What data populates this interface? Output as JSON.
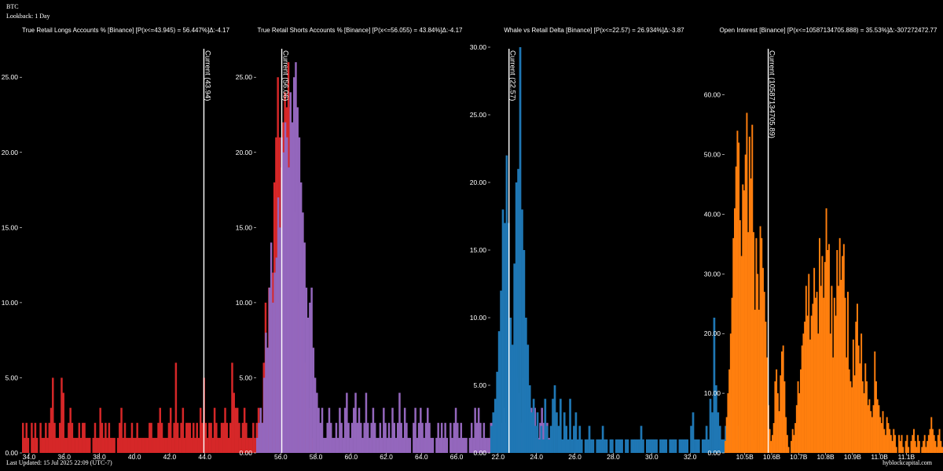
{
  "header": {
    "symbol": "BTC",
    "lookback": "Lookback: 1 Day"
  },
  "footer": {
    "updated": "Last Updated: 15 Jul 2025 22:09 (UTC-7)",
    "brand": "hyblockcapital.com"
  },
  "chart_data": [
    {
      "type": "bar",
      "title": "True Retail Longs Accounts % [Binance] [P(x<=43.945) = 56.447%]Δ:-4.17",
      "color": "#d62728",
      "xlim": [
        33.6,
        45.4
      ],
      "ylim": [
        0,
        27
      ],
      "xticks": [
        34.0,
        36.0,
        38.0,
        40.0,
        42.0,
        44.0
      ],
      "xtick_labels": [
        "34.0",
        "36.0",
        "38.0",
        "40.0",
        "42.0",
        "44.0"
      ],
      "yticks": [
        0,
        5,
        10,
        15,
        20,
        25
      ],
      "ytick_labels": [
        "0.00",
        "5.00",
        "10.00",
        "15.00",
        "20.00",
        "25.00"
      ],
      "bin_start": 33.6,
      "bin_width": 0.1,
      "values": [
        2,
        1,
        2,
        1,
        0,
        2,
        1,
        2,
        1,
        0,
        2,
        1,
        1,
        2,
        1,
        2,
        3,
        5,
        2,
        1,
        1,
        2,
        5,
        4,
        1,
        1,
        2,
        3,
        2,
        1,
        1,
        1,
        2,
        1,
        2,
        2,
        1,
        1,
        1,
        0,
        1,
        2,
        1,
        1,
        3,
        2,
        1,
        2,
        1,
        2,
        1,
        1,
        1,
        0,
        1,
        2,
        3,
        1,
        2,
        1,
        1,
        1,
        2,
        1,
        1,
        2,
        1,
        1,
        1,
        1,
        1,
        1,
        2,
        2,
        1,
        1,
        1,
        2,
        3,
        2,
        1,
        1,
        1,
        2,
        3,
        1,
        2,
        6,
        2,
        1,
        2,
        3,
        1,
        2,
        2,
        2,
        1,
        2,
        1,
        2,
        1,
        3,
        2,
        5,
        2,
        1,
        2,
        2,
        1,
        3,
        2,
        1,
        1,
        2,
        2,
        3,
        2,
        1,
        2,
        6,
        4,
        3,
        3,
        2,
        1,
        2,
        3,
        2,
        1,
        1,
        1,
        2,
        1,
        2,
        3,
        1,
        2,
        6,
        10,
        7,
        11,
        10,
        12,
        18,
        21,
        25,
        21,
        19,
        22,
        24,
        23,
        26,
        23,
        21,
        18,
        16,
        14,
        10,
        8,
        12,
        9,
        6,
        5,
        3,
        2,
        1,
        1,
        0
      ],
      "current": {
        "value": 43.945,
        "label": "Current (43.94)"
      }
    },
    {
      "type": "bar",
      "title": "True Retail Shorts Accounts % [Binance] [P(x<=56.055) = 43.84%]Δ:-4.17",
      "color": "#9467bd",
      "xlim": [
        54.6,
        66.4
      ],
      "ylim": [
        0,
        27
      ],
      "xticks": [
        56.0,
        58.0,
        60.0,
        62.0,
        64.0,
        66.0
      ],
      "xtick_labels": [
        "56.0",
        "58.0",
        "60.0",
        "62.0",
        "64.0",
        "66.0"
      ],
      "yticks": [
        0,
        5,
        10,
        15,
        20,
        25
      ],
      "ytick_labels": [
        "0.00",
        "5.00",
        "10.00",
        "15.00",
        "20.00",
        "25.00"
      ],
      "bin_start": 54.6,
      "bin_width": 0.1,
      "values": [
        1,
        2,
        3,
        2,
        5,
        8,
        7,
        11,
        14,
        10,
        12,
        13,
        17,
        15,
        21,
        20,
        22,
        21,
        19,
        24,
        22,
        25,
        26,
        23,
        21,
        18,
        16,
        14,
        11,
        9,
        10,
        11,
        7,
        5,
        4,
        3,
        2,
        3,
        1,
        1,
        2,
        3,
        2,
        1,
        1,
        2,
        1,
        3,
        2,
        1,
        3,
        4,
        2,
        1,
        2,
        3,
        4,
        2,
        3,
        2,
        1,
        2,
        4,
        2,
        1,
        2,
        3,
        2,
        1,
        1,
        2,
        1,
        3,
        2,
        1,
        2,
        1,
        3,
        2,
        1,
        2,
        4,
        2,
        1,
        3,
        2,
        1,
        1,
        0,
        2,
        3,
        1,
        2,
        3,
        2,
        1,
        2,
        3,
        2,
        1,
        1,
        0,
        1,
        2,
        1,
        2,
        1,
        2,
        1,
        0,
        2,
        1,
        2,
        3,
        2,
        1,
        2,
        1,
        1,
        1,
        0,
        1,
        2,
        1,
        3,
        2,
        3,
        2,
        1,
        2,
        1,
        1,
        1,
        2,
        2,
        2,
        3,
        2,
        1,
        2,
        3,
        1,
        2,
        2,
        1,
        2,
        1,
        3,
        5,
        4,
        2,
        5,
        4,
        3,
        5,
        2,
        3,
        2,
        3,
        1,
        1,
        2,
        3,
        2,
        1,
        2,
        1,
        1,
        0
      ],
      "current": {
        "value": 56.055,
        "label": "Current (56.06)"
      }
    },
    {
      "type": "bar",
      "title": "Whale vs Retail Delta [Binance] [P(x<=22.57) = 26.934%]Δ:-3.87",
      "color": "#1f77b4",
      "xlim": [
        21.6,
        32.4
      ],
      "ylim": [
        0,
        30
      ],
      "xticks": [
        22.0,
        24.0,
        26.0,
        28.0,
        30.0,
        32.0
      ],
      "xtick_labels": [
        "22.0",
        "24.0",
        "26.0",
        "28.0",
        "30.0",
        "32.0"
      ],
      "yticks": [
        0,
        5,
        10,
        15,
        20,
        25,
        30
      ],
      "ytick_labels": [
        "0.00",
        "5.00",
        "10.00",
        "15.00",
        "20.00",
        "25.00",
        "30.00"
      ],
      "bin_start": 21.6,
      "bin_width": 0.1,
      "values": [
        2,
        3,
        4,
        6,
        9,
        12,
        18,
        17,
        22,
        17,
        10,
        8,
        14,
        20,
        21,
        30,
        18,
        15,
        10,
        8,
        5,
        3,
        4,
        2,
        3,
        1,
        2,
        1,
        4,
        2,
        1,
        2,
        4,
        5,
        3,
        2,
        4,
        1,
        3,
        2,
        1,
        4,
        1,
        2,
        3,
        1,
        2,
        1,
        0,
        1,
        1,
        2,
        1,
        1,
        0,
        1,
        1,
        1,
        2,
        1,
        1,
        0,
        1,
        1,
        0,
        1,
        1,
        1,
        1,
        0,
        1,
        1,
        0,
        1,
        1,
        1,
        1,
        1,
        2,
        1,
        0,
        1,
        1,
        1,
        1,
        1,
        1,
        0,
        1,
        1,
        1,
        1,
        0,
        1,
        1,
        1,
        1,
        0,
        1,
        1,
        1,
        1,
        1,
        0,
        2,
        3,
        1,
        1,
        1,
        0,
        1,
        1,
        2,
        1,
        4,
        3,
        10,
        5,
        3,
        2,
        1,
        1,
        2,
        1,
        3,
        4,
        2,
        1,
        2,
        0,
        0,
        0,
        0,
        0,
        3,
        2,
        1,
        1
      ],
      "current": {
        "value": 22.57,
        "label": "Current (22.57)"
      }
    },
    {
      "type": "bar",
      "title": "Open Interest [Binance] [P(x<=10587134705.888) = 35.53%]Δ:-307272472.77",
      "color": "#ff7f0e",
      "xlim": [
        10.425,
        11.195
      ],
      "ylim": [
        0,
        68
      ],
      "xticks": [
        10.5,
        10.6,
        10.7,
        10.8,
        10.9,
        11.0,
        11.1
      ],
      "xtick_labels": [
        "10.5B",
        "10.6B",
        "10.7B",
        "10.8B",
        "10.9B",
        "11.0B",
        "11.1B"
      ],
      "yticks": [
        0,
        10,
        20,
        30,
        40,
        50,
        60
      ],
      "ytick_labels": [
        "0.00",
        "10.00",
        "20.00",
        "30.00",
        "40.00",
        "50.00",
        "60.00"
      ],
      "bin_start": 10.425,
      "bin_width": 0.005,
      "values": [
        2,
        6,
        10,
        14,
        20,
        26,
        36,
        41,
        48,
        54,
        52,
        39,
        33,
        45,
        44,
        50,
        57,
        37,
        53,
        46,
        55,
        37,
        24,
        36,
        30,
        24,
        38,
        36,
        31,
        27,
        22,
        16,
        8,
        4,
        2,
        3,
        5,
        12,
        14,
        10,
        7,
        13,
        17,
        18,
        12,
        6,
        3,
        1,
        0,
        2,
        4,
        3,
        5,
        8,
        12,
        10,
        14,
        18,
        20,
        22,
        28,
        23,
        30,
        19,
        23,
        25,
        31,
        26,
        27,
        20,
        36,
        28,
        33,
        26,
        32,
        41,
        34,
        35,
        20,
        28,
        16,
        26,
        23,
        34,
        28,
        36,
        29,
        33,
        35,
        26,
        16,
        27,
        14,
        12,
        11,
        19,
        13,
        22,
        25,
        18,
        15,
        20,
        12,
        10,
        15,
        12,
        8,
        9,
        7,
        6,
        8,
        17,
        12,
        9,
        8,
        6,
        5,
        7,
        4,
        3,
        6,
        5,
        4,
        3,
        2,
        4,
        3,
        1,
        0,
        3,
        2,
        3,
        1,
        0,
        2,
        3,
        1,
        0,
        2,
        3,
        4,
        2,
        1,
        3,
        2,
        0,
        1,
        2,
        3,
        1,
        2,
        3,
        4,
        6,
        4,
        3,
        2,
        1,
        3,
        4,
        2,
        1
      ],
      "current": {
        "value": 10.587134705888,
        "label": "Current (10587134705.89)"
      }
    }
  ]
}
